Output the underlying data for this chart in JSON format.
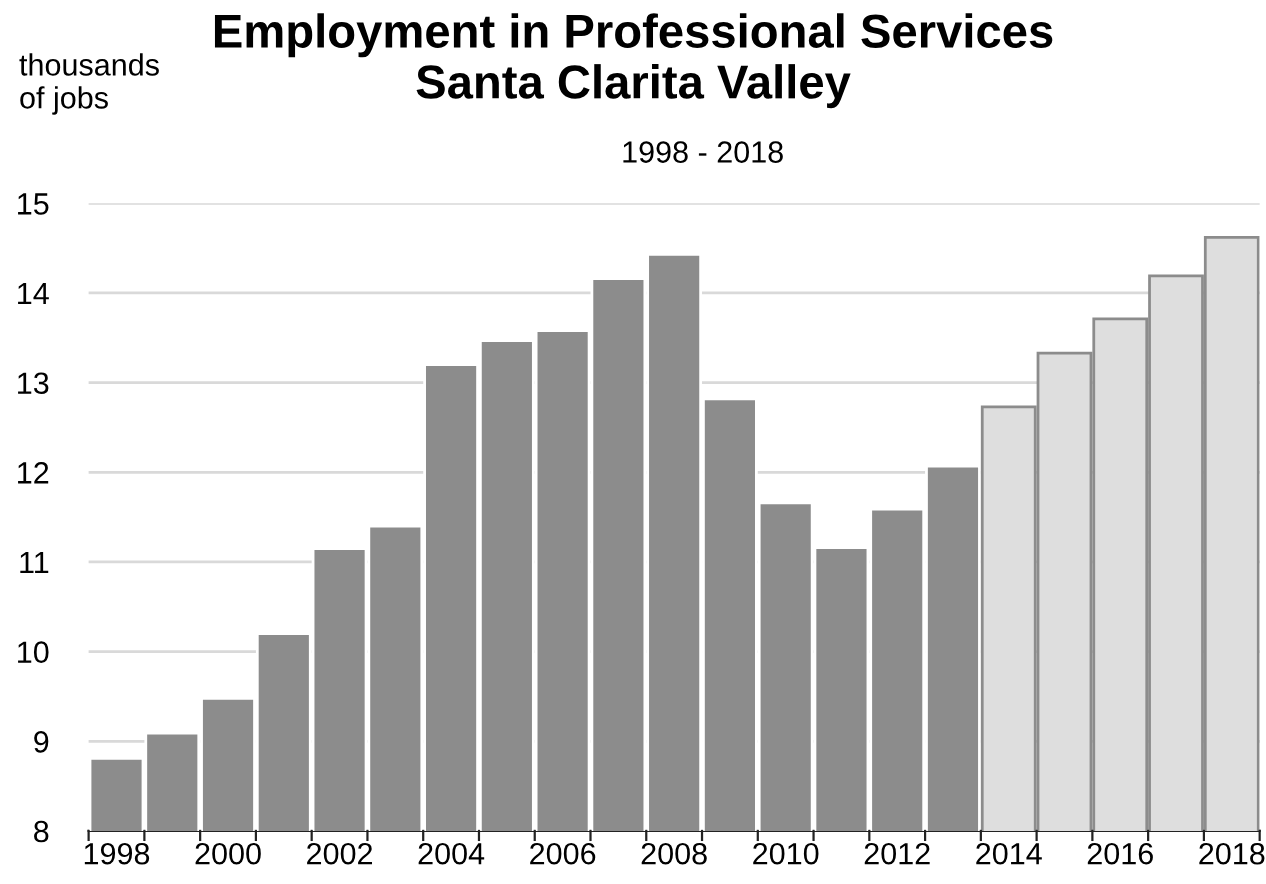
{
  "chart_data": {
    "type": "bar",
    "title": "Employment in Professional Services\nSanta Clarita Valley",
    "subtitle": "1998 - 2018",
    "ylabel": "thousands\nof jobs",
    "categories": [
      "1998",
      null,
      "2000",
      null,
      "2002",
      null,
      "2004",
      null,
      "2006",
      null,
      "2008",
      null,
      "2010",
      null,
      "2012",
      null,
      "2014",
      null,
      "2016",
      null,
      "2018"
    ],
    "values": [
      8.81,
      9.09,
      9.48,
      10.2,
      11.15,
      11.4,
      13.2,
      13.47,
      13.58,
      14.16,
      14.43,
      12.82,
      11.66,
      11.16,
      11.59,
      12.07,
      12.73,
      13.33,
      13.71,
      14.19,
      14.62
    ],
    "colors": [
      "#8c8c8c",
      "#8c8c8c",
      "#8c8c8c",
      "#8c8c8c",
      "#8c8c8c",
      "#8c8c8c",
      "#8c8c8c",
      "#8c8c8c",
      "#8c8c8c",
      "#8c8c8c",
      "#8c8c8c",
      "#8c8c8c",
      "#8c8c8c",
      "#8c8c8c",
      "#8c8c8c",
      "#8c8c8c",
      "#dedede",
      "#dedede",
      "#dedede",
      "#dedede",
      "#dedede"
    ],
    "ylim": [
      8,
      15
    ],
    "yticks": [
      8,
      9,
      10,
      11,
      12,
      13,
      14,
      15
    ],
    "grid": "y",
    "legend": false
  }
}
